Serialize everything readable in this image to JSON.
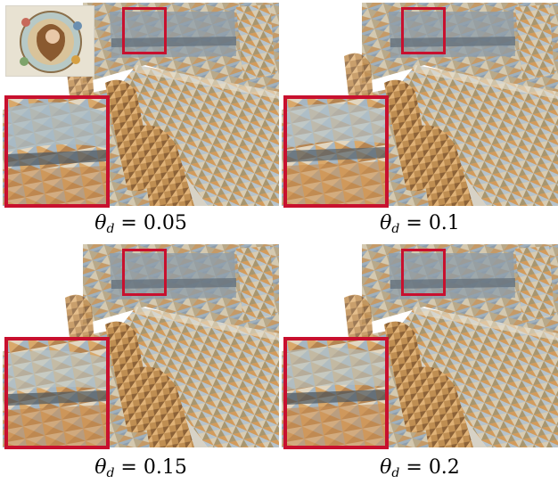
{
  "figure": {
    "captions": [
      {
        "symbol": "θ",
        "subscript": "d",
        "equals": " = ",
        "value": "0.05"
      },
      {
        "symbol": "θ",
        "subscript": "d",
        "equals": " = ",
        "value": "0.1"
      },
      {
        "symbol": "θ",
        "subscript": "d",
        "equals": " = ",
        "value": "0.15"
      },
      {
        "symbol": "θ",
        "subscript": "d",
        "equals": " = ",
        "value": "0.2"
      }
    ],
    "colors": {
      "highlight": "#c8102e",
      "wall": "#a9b7c4",
      "table": "#b9a98e",
      "chair": "#b3864c",
      "window": "#7d8f9c"
    }
  }
}
